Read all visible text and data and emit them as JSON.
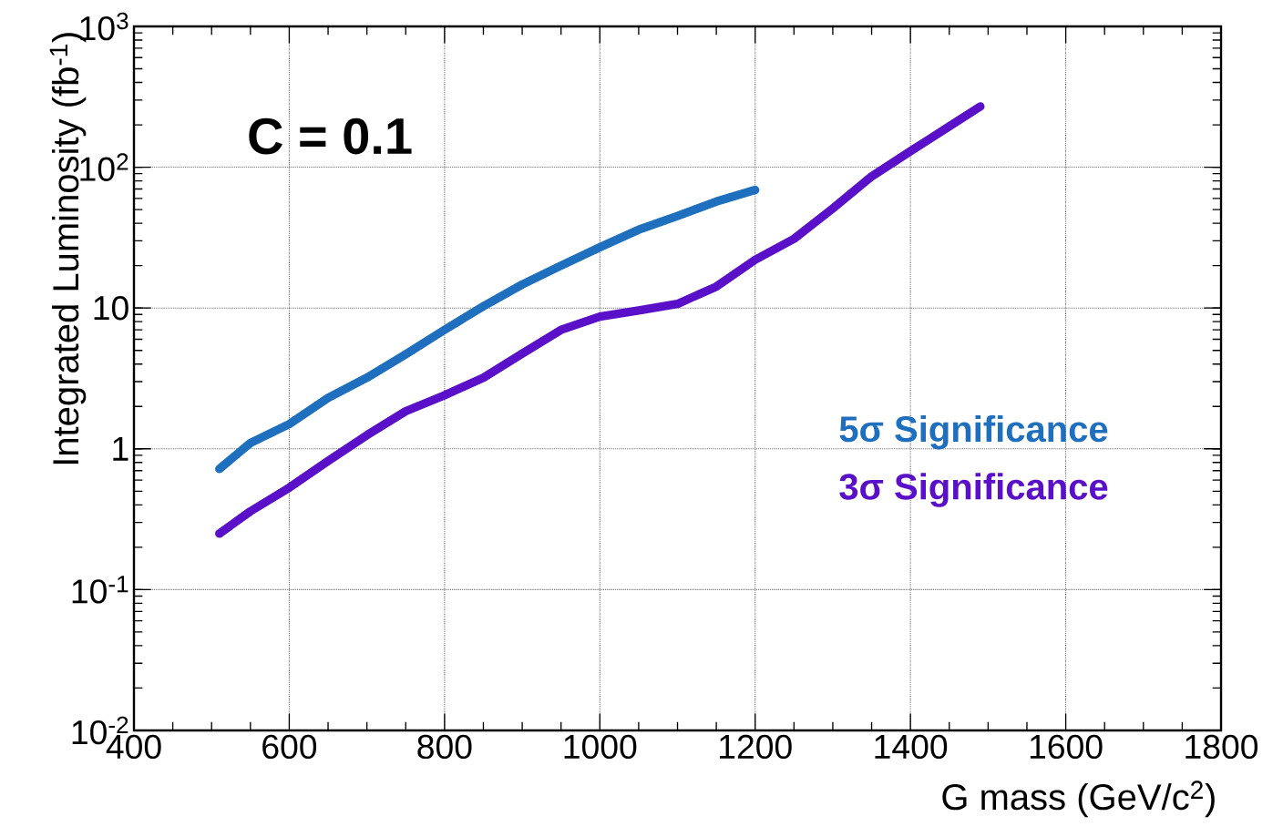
{
  "chart_data": {
    "type": "line",
    "xlabel": "G mass (GeV/c$^{2}$)",
    "ylabel": "Integrated Luminosity (fb$^{-1}$)",
    "annotations": [
      "C = 0.1"
    ],
    "log": "y",
    "grid": true,
    "xlim": [
      400,
      1800
    ],
    "xticks": [
      400,
      600,
      800,
      1000,
      1200,
      1400,
      1600,
      1800
    ],
    "ylim": [
      0.01,
      1000
    ],
    "yticks": [
      {
        "value": 0.01,
        "label": "10$^{-2}$"
      },
      {
        "value": 0.1,
        "label": "10$^{-1}$"
      },
      1,
      10,
      {
        "value": 100,
        "label": "10$^{2}$"
      },
      {
        "value": 1000,
        "label": "10$^{3}$"
      }
    ],
    "series": [
      {
        "name": "5σ Significance",
        "color": "#1f6fbf",
        "x": [
          510,
          550,
          600,
          650,
          700,
          750,
          800,
          850,
          900,
          950,
          1000,
          1050,
          1100,
          1150,
          1200
        ],
        "values": [
          0.72,
          1.1,
          1.5,
          2.3,
          3.2,
          4.7,
          7.0,
          10.3,
          14.7,
          20,
          27,
          36,
          45,
          57,
          69
        ]
      },
      {
        "name": "3σ Significance",
        "color": "#5a10c8",
        "x": [
          510,
          550,
          600,
          650,
          700,
          750,
          800,
          850,
          900,
          950,
          1000,
          1050,
          1100,
          1150,
          1200,
          1250,
          1300,
          1350,
          1400,
          1450,
          1490
        ],
        "values": [
          0.25,
          0.36,
          0.53,
          0.82,
          1.25,
          1.85,
          2.4,
          3.2,
          4.75,
          7.0,
          8.7,
          9.6,
          10.7,
          14.2,
          22,
          31,
          51,
          86,
          130,
          195,
          270
        ]
      }
    ]
  }
}
